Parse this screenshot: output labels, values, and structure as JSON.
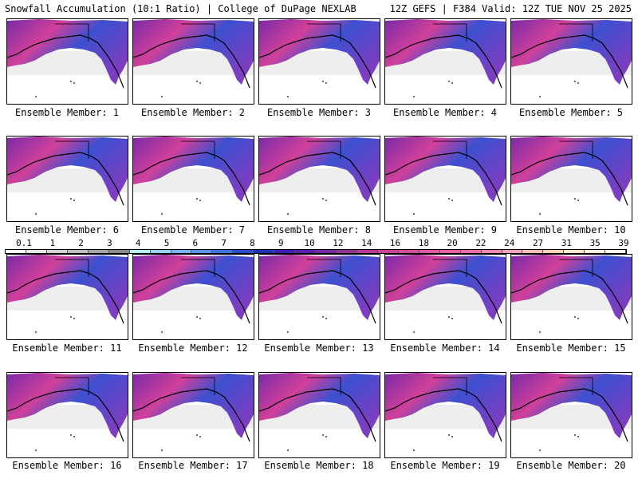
{
  "header": {
    "left_title": "Snowfall Accumulation (10:1 Ratio) | College of DuPage NEXLAB",
    "right_title": "12Z GEFS | F384 Valid: 12Z TUE NOV 25 2025"
  },
  "panels": [
    {
      "label": "Ensemble Member: 1"
    },
    {
      "label": "Ensemble Member: 2"
    },
    {
      "label": "Ensemble Member: 3"
    },
    {
      "label": "Ensemble Member: 4"
    },
    {
      "label": "Ensemble Member: 5"
    },
    {
      "label": "Ensemble Member: 6"
    },
    {
      "label": "Ensemble Member: 7"
    },
    {
      "label": "Ensemble Member: 8"
    },
    {
      "label": "Ensemble Member: 9"
    },
    {
      "label": "Ensemble Member: 10"
    },
    {
      "label": "Ensemble Member: 11"
    },
    {
      "label": "Ensemble Member: 12"
    },
    {
      "label": "Ensemble Member: 13"
    },
    {
      "label": "Ensemble Member: 14"
    },
    {
      "label": "Ensemble Member: 15"
    },
    {
      "label": "Ensemble Member: 16"
    },
    {
      "label": "Ensemble Member: 17"
    },
    {
      "label": "Ensemble Member: 18"
    },
    {
      "label": "Ensemble Member: 19"
    },
    {
      "label": "Ensemble Member: 20"
    }
  ],
  "colorbar": {
    "labels": [
      "0.1",
      "1",
      "2",
      "3",
      "4",
      "5",
      "6",
      "7",
      "8",
      "9",
      "10",
      "12",
      "14",
      "16",
      "18",
      "20",
      "22",
      "24",
      "27",
      "31",
      "35",
      "39"
    ],
    "colors": [
      "#ffffff",
      "#e6e6e6",
      "#d2d2d2",
      "#bebebe",
      "#a5a5a5",
      "#8c8c8c",
      "#b4f0f0",
      "#96d2fa",
      "#78b4f0",
      "#5a96e6",
      "#3c78dc",
      "#2850c8",
      "#1e32b4",
      "#3c1eb4",
      "#5a1eaa",
      "#7828a0",
      "#963296",
      "#b43c96",
      "#c84696",
      "#d2509b",
      "#dc5aa0",
      "#e664a5",
      "#f06eaa",
      "#f08cb4",
      "#f0a5be",
      "#f5beb4",
      "#fad2b4",
      "#fae6c8",
      "#fff0dc",
      "#fffaf0"
    ]
  }
}
